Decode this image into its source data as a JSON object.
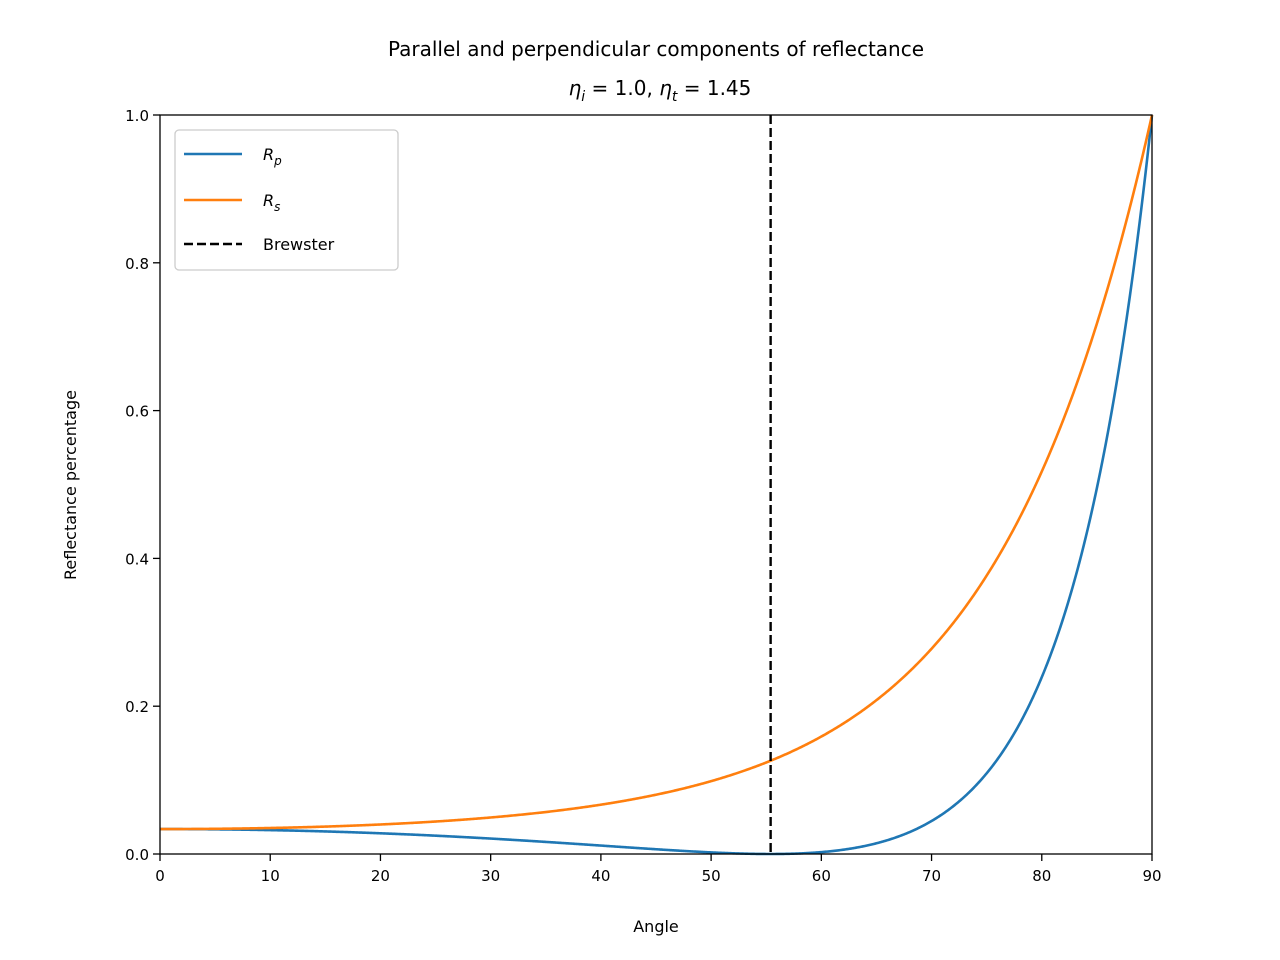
{
  "chart_data": {
    "type": "line",
    "title": "Parallel and perpendicular components of reflectance",
    "subtitle": {
      "eta_i_symbol": "η",
      "eta_i_sub": "i",
      "eta_i_value": " = 1.0, ",
      "eta_t_symbol": "η",
      "eta_t_sub": "t",
      "eta_t_value": " =  1.45"
    },
    "xlabel": "Angle",
    "ylabel": "Reflectance percentage",
    "xlim": [
      0,
      90
    ],
    "ylim": [
      0,
      1
    ],
    "xticks": [
      0,
      10,
      20,
      30,
      40,
      50,
      60,
      70,
      80,
      90
    ],
    "yticks": [
      0.0,
      0.2,
      0.4,
      0.6,
      0.8,
      1.0
    ],
    "xtick_labels": [
      "0",
      "10",
      "20",
      "30",
      "40",
      "50",
      "60",
      "70",
      "80",
      "90"
    ],
    "ytick_labels": [
      "0.0",
      "0.2",
      "0.4",
      "0.6",
      "0.8",
      "1.0"
    ],
    "grid": false,
    "legend_position": "top-left",
    "n1": 1.0,
    "n2": 1.45,
    "series": [
      {
        "name": "R",
        "name_sub": "p",
        "color": "#1f77b4",
        "x": [
          0,
          5,
          10,
          15,
          20,
          25,
          30,
          35,
          40,
          45,
          50,
          52,
          54,
          55.4,
          56,
          58,
          60,
          62,
          64,
          66,
          68,
          70,
          72,
          74,
          76,
          78,
          80,
          82,
          84,
          85,
          86,
          87,
          88,
          89,
          90
        ],
        "y": [
          0.0337,
          0.0334,
          0.0324,
          0.0307,
          0.0282,
          0.025,
          0.021,
          0.0163,
          0.011,
          0.0058,
          0.0015,
          0.0006,
          0.0001,
          0.0,
          0.0001,
          0.0007,
          0.003,
          0.0069,
          0.0128,
          0.0209,
          0.0318,
          0.046,
          0.0643,
          0.088,
          0.1183,
          0.1572,
          0.2072,
          0.2718,
          0.3559,
          0.408,
          0.4673,
          0.5354,
          0.6132,
          0.7023,
          1.0
        ]
      },
      {
        "name": "R",
        "name_sub": "s",
        "color": "#ff7f0e",
        "x": [
          0,
          5,
          10,
          15,
          20,
          25,
          30,
          35,
          40,
          45,
          50,
          55,
          60,
          62,
          64,
          66,
          68,
          70,
          72,
          74,
          76,
          78,
          80,
          82,
          84,
          85,
          86,
          87,
          88,
          89,
          90
        ],
        "y": [
          0.0337,
          0.0339,
          0.035,
          0.0368,
          0.0395,
          0.0432,
          0.0482,
          0.0549,
          0.0636,
          0.0752,
          0.0906,
          0.1114,
          0.1399,
          0.1539,
          0.17,
          0.1885,
          0.2099,
          0.2347,
          0.2638,
          0.2979,
          0.3383,
          0.3863,
          0.4437,
          0.5128,
          0.5961,
          0.6442,
          0.6975,
          0.756,
          0.8205,
          0.8915,
          1.0
        ]
      }
    ],
    "vline": {
      "name": "Brewster",
      "x": 55.4,
      "color": "#000000",
      "style": "dashed"
    }
  }
}
